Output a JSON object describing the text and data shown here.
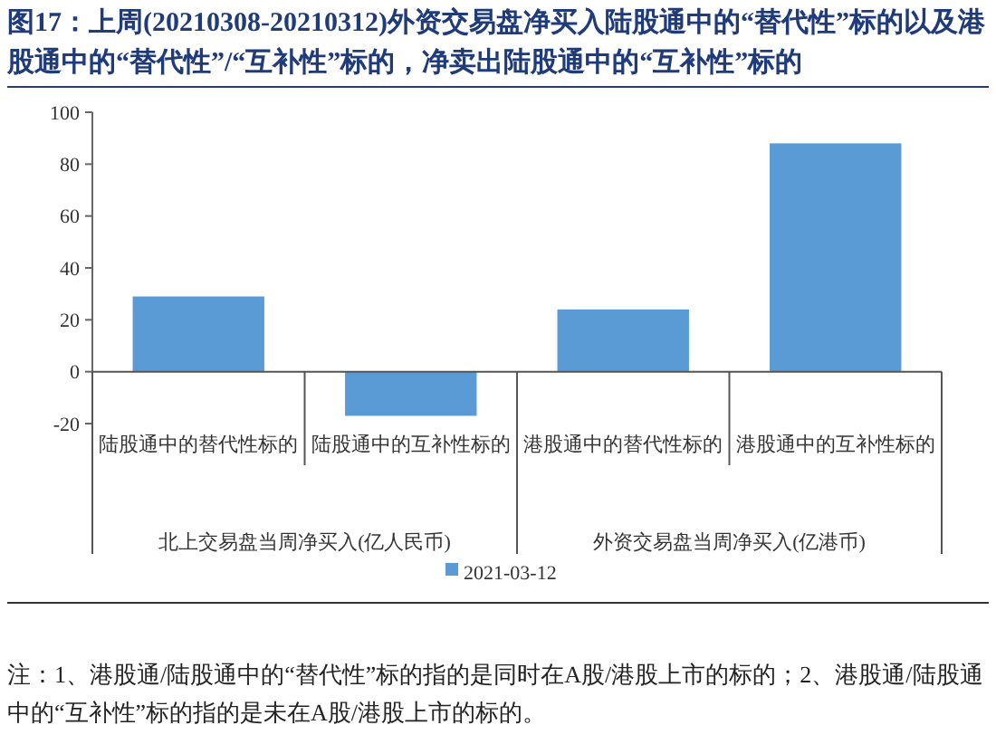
{
  "chart_data": {
    "type": "bar",
    "title": "图17：上周(20210308-20210312)外资交易盘净买入陆股通中的“替代性”标的以及港股通中的“替代性”/“互补性”标的，净卖出陆股通中的“互补性”标的",
    "categories": [
      "陆股通中的替代性标的",
      "陆股通中的互补性标的",
      "港股通中的替代性标的",
      "港股通中的互补性标的"
    ],
    "series": [
      {
        "name": "2021-03-12",
        "color": "#5b9bd5",
        "values": [
          29,
          -17,
          24,
          88
        ]
      }
    ],
    "ylim": [
      -20,
      100
    ],
    "yticks": [
      -20,
      0,
      20,
      40,
      60,
      80,
      100
    ],
    "legend": "bottom",
    "annotations": [
      "北上交易盘当周净买入(亿人民币)",
      "外资交易盘当周净买入(亿港币)",
      "注：1、港股通/陆股通中的“替代性”标的指的是同时在A股/港股上市的标的；2、港股通/陆股通中的“互补性”标的指的是未在A股/港股上市的标的。"
    ]
  }
}
